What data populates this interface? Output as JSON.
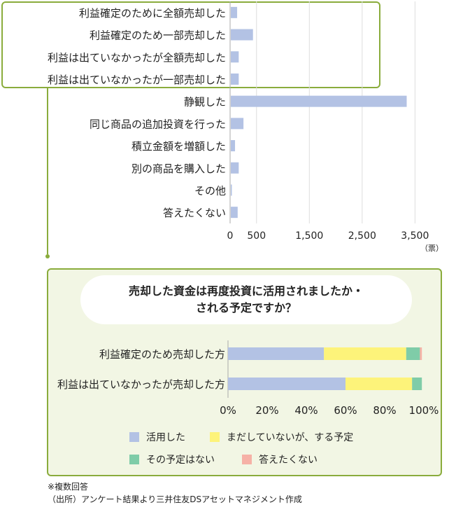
{
  "chart_data": [
    {
      "type": "bar",
      "orientation": "horizontal",
      "categories": [
        "利益確定のために全額売却した",
        "利益確定のため一部売却した",
        "利益は出ていなかったが全額売却した",
        "利益は出ていなかったが一部売却した",
        "静観した",
        "同じ商品の追加投資を行った",
        "積立金額を増額した",
        "別の商品を購入した",
        "その他",
        "答えたくない"
      ],
      "values": [
        120,
        420,
        150,
        150,
        3330,
        240,
        80,
        150,
        20,
        130
      ],
      "xlim": [
        0,
        3800
      ],
      "xticks": [
        0,
        500,
        1500,
        2500,
        3500
      ],
      "xtick_labels": [
        "0",
        "500",
        "1,500",
        "2,500",
        "3,500"
      ],
      "unit_label": "（票）",
      "color": "#b3c2e4"
    },
    {
      "type": "bar",
      "orientation": "horizontal",
      "stacked": true,
      "title": "売却した資金は再度投資に活用されましたか・される予定ですか？",
      "title_lines": [
        "売却した資金は再度投資に活用されましたか・",
        "される予定ですか？"
      ],
      "categories": [
        "利益確定のため売却した方",
        "利益は出ていなかったが売却した方"
      ],
      "series": [
        {
          "name": "活用した",
          "values": [
            49,
            60
          ],
          "color": "#b3c2e4"
        },
        {
          "name": "まだしていないが、する予定",
          "values": [
            42,
            34
          ],
          "color": "#fdf37a"
        },
        {
          "name": "その予定はない",
          "values": [
            7,
            5
          ],
          "color": "#7fcca8"
        },
        {
          "name": "答えたくない",
          "values": [
            1,
            0
          ],
          "color": "#f6b1a6"
        }
      ],
      "xlim": [
        0,
        100
      ],
      "xticks": [
        0,
        20,
        40,
        60,
        80,
        100
      ],
      "xtick_labels": [
        "0%",
        "20%",
        "40%",
        "60%",
        "80%",
        "100%"
      ]
    }
  ],
  "notes": [
    "※複数回答",
    "（出所）アンケート結果より三井住友DSアセットマネジメント作成"
  ],
  "colors": {
    "frame": "#8aac3c",
    "panel_bg": "#f2f6e4"
  }
}
